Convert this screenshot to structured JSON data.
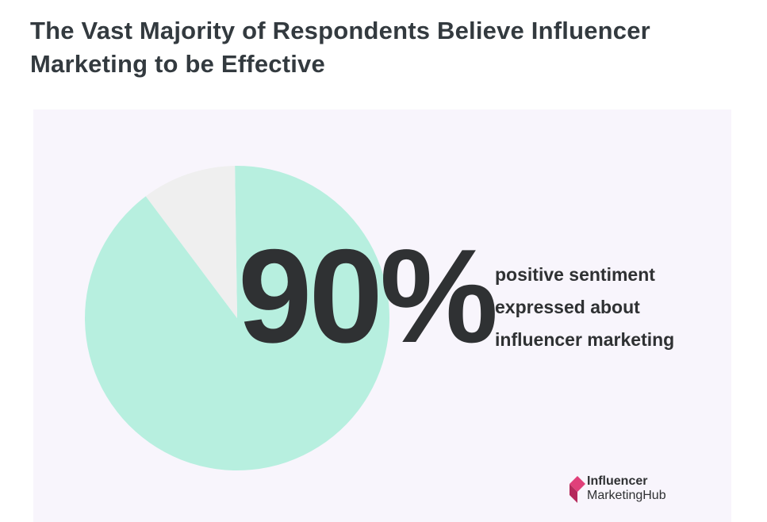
{
  "title": {
    "line1": "The Vast Majority of Respondents Believe Influencer",
    "line2": "Marketing to be Effective"
  },
  "chart_data": {
    "type": "pie",
    "values": [
      90,
      10
    ],
    "colors": [
      "#b7efdf",
      "#efefef"
    ],
    "highlight_label": "90%",
    "description": [
      "positive sentiment",
      "expressed about",
      "influencer marketing"
    ]
  },
  "logo": {
    "line1": "Influencer",
    "line2": "MarketingHub",
    "colors": [
      "#e0407a",
      "#b52a5c"
    ]
  },
  "panel_color": "#f8f5fc"
}
